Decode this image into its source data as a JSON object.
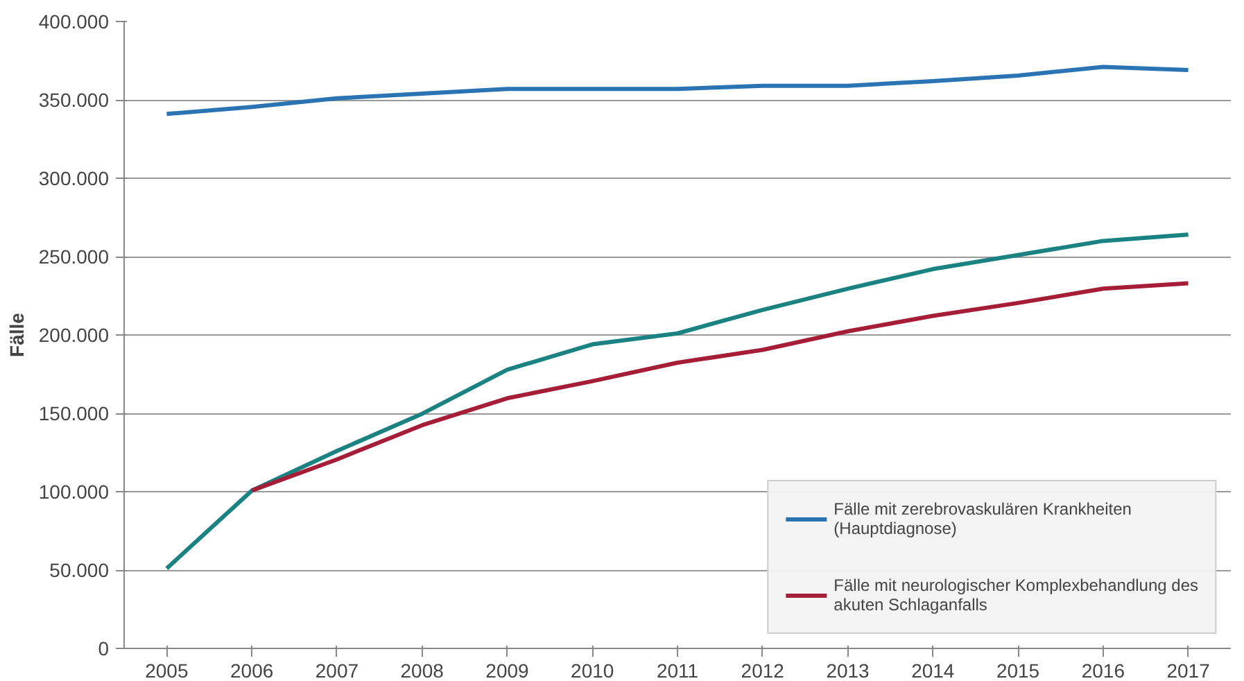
{
  "chart_data": {
    "type": "line",
    "ylabel": "Fälle",
    "categories": [
      "2005",
      "2006",
      "2007",
      "2008",
      "2009",
      "2010",
      "2011",
      "2012",
      "2013",
      "2014",
      "2015",
      "2016",
      "2017"
    ],
    "ylim": [
      0,
      400000
    ],
    "yticks": [
      {
        "value": 0,
        "label": "0"
      },
      {
        "value": 50000,
        "label": "50.000"
      },
      {
        "value": 100000,
        "label": "100.000"
      },
      {
        "value": 150000,
        "label": "150.000"
      },
      {
        "value": 200000,
        "label": "200.000"
      },
      {
        "value": 250000,
        "label": "250.000"
      },
      {
        "value": 300000,
        "label": "300.000"
      },
      {
        "value": 350000,
        "label": "350.000"
      },
      {
        "value": 400000,
        "label": "400.000"
      }
    ],
    "grid": "y",
    "legend": "bottom right",
    "marker": "none",
    "line_style": "solid",
    "series": [
      {
        "name": "Fälle mit zerebrovaskulären Krankheiten (Hauptdiagnose)",
        "color": "#2a74b4",
        "values": [
          341000,
          345500,
          351000,
          354000,
          357000,
          357000,
          357000,
          359000,
          359000,
          362000,
          365500,
          371000,
          369000
        ]
      },
      {
        "color": "#1b8282",
        "values": [
          51000,
          100700,
          126000,
          149700,
          177800,
          194000,
          201000,
          216000,
          229500,
          242000,
          251000,
          260000,
          264000
        ]
      },
      {
        "name": "Fälle mit neurologischer Komplexbehandlung des akuten Schlaganfalls",
        "color": "#a51d36",
        "values": [
          null,
          100700,
          120600,
          142400,
          159600,
          170500,
          182300,
          190500,
          202300,
          212200,
          220400,
          229500,
          233000
        ]
      }
    ]
  }
}
